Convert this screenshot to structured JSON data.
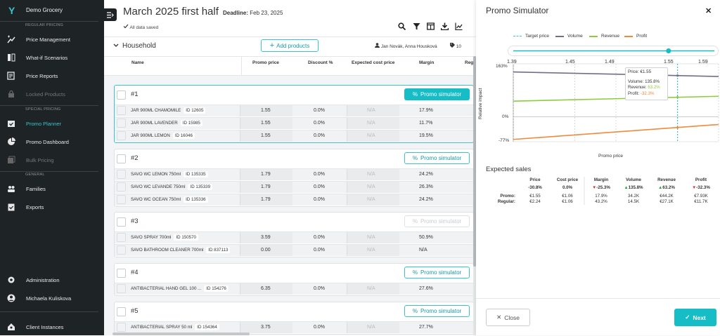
{
  "sidebar": {
    "app_name": "Demo Grocery",
    "logo": "Y",
    "sections": {
      "regular": "REGULAR PRICING",
      "special": "SPECIAL PRICING",
      "general": "GENERAL"
    },
    "items": [
      {
        "label": "Price Management",
        "icon": "price-tag-icon"
      },
      {
        "label": "What-if Scenarios",
        "icon": "columns-icon"
      },
      {
        "label": "Price Reports",
        "icon": "report-icon"
      },
      {
        "label": "Locked Products",
        "icon": "lock-icon"
      },
      {
        "label": "Promo Planner",
        "icon": "calendar-check-icon"
      },
      {
        "label": "Promo Dashboard",
        "icon": "pie-chart-icon"
      },
      {
        "label": "Bulk Pricing",
        "icon": "bulk-icon"
      },
      {
        "label": "Families",
        "icon": "people-icon"
      },
      {
        "label": "Exports",
        "icon": "clipboard-check-icon"
      },
      {
        "label": "Administration",
        "icon": "gear-icon"
      },
      {
        "label": "Michaela Kuliskova",
        "icon": "user-icon"
      },
      {
        "label": "Client Instances",
        "icon": "home-user-icon"
      }
    ]
  },
  "header": {
    "title": "March 2025 first half",
    "deadline_label": "Deadline:",
    "deadline_value": "Feb 23, 2025",
    "saved": "All data saved"
  },
  "group": {
    "name": "Household",
    "add_label": "Add products",
    "owners": "Jan Novák, Anna Housková",
    "count": "10"
  },
  "table": {
    "columns": [
      "Name",
      "Promo price",
      "Discount %",
      "Expected cost price",
      "Margin",
      "Reg"
    ]
  },
  "promo_sim_label": "Promo simulator",
  "cards": [
    {
      "num": "#1",
      "rows": [
        {
          "name": "JAR 900ML CHAMOMILE",
          "id": "ID 12605",
          "price": "1.55",
          "discount": "0.0%",
          "cost": "N/A",
          "margin": "17.9%"
        },
        {
          "name": "JAR 900ML LAVENDER",
          "id": "ID 15985",
          "price": "1.55",
          "discount": "0.0%",
          "cost": "N/A",
          "margin": "11.7%"
        },
        {
          "name": "JAR 900ML LEMON",
          "id": "ID 16046",
          "price": "1.55",
          "discount": "0.0%",
          "cost": "N/A",
          "margin": "19.5%"
        }
      ]
    },
    {
      "num": "#2",
      "rows": [
        {
          "name": "SAVO WC LEMON 750ml",
          "id": "ID 135335",
          "price": "1.79",
          "discount": "0.0%",
          "cost": "N/A",
          "margin": "24.2%"
        },
        {
          "name": "SAVO WC LEVANDE 750ml",
          "id": "ID 135339",
          "price": "1.79",
          "discount": "0.0%",
          "cost": "N/A",
          "margin": "26.3%"
        },
        {
          "name": "SAVO WC OCEAN 750ml",
          "id": "ID 135336",
          "price": "1.79",
          "discount": "0.0%",
          "cost": "N/A",
          "margin": "24.2%"
        }
      ]
    },
    {
      "num": "#3",
      "rows": [
        {
          "name": "SAVO SPRAY 700ml",
          "id": "ID 150570",
          "price": "3.59",
          "discount": "0.0%",
          "cost": "N/A",
          "margin": "50.9%"
        },
        {
          "name": "SAVO BATHROOM CLEANER 700ml",
          "id": "ID 837113",
          "price": "0.00",
          "discount": "0.0%",
          "cost": "N/A",
          "margin": "N/A"
        }
      ]
    },
    {
      "num": "#4",
      "rows": [
        {
          "name": "ANTIBACTERIAL HAND GEL 100 ...",
          "id": "ID 154276",
          "price": "6.35",
          "discount": "0.0%",
          "cost": "N/A",
          "margin": "27.6%"
        }
      ]
    },
    {
      "num": "#5",
      "rows": [
        {
          "name": "ANTIBACTERIAL SPRAY 50 ml",
          "id": "ID 154364",
          "price": "3.75",
          "discount": "0.0%",
          "cost": "N/A",
          "margin": "27.7%"
        }
      ]
    }
  ],
  "panel": {
    "title": "Promo Simulator",
    "legend": [
      "Target price",
      "Volume",
      "Revenue",
      "Profit"
    ],
    "colors": {
      "target": "#36c5d0",
      "volume": "#6e6f8c",
      "revenue": "#8ccc3c",
      "profit": "#f08a3c",
      "accent": "#16bcc6"
    },
    "slider_ticks": [
      "1.39",
      "1.45",
      "1.49",
      "1.55",
      "1.59"
    ],
    "slider_value": 1.55,
    "y_label": "Relative impact",
    "x_label": "Promo price",
    "y_ticks": [
      "163%",
      "0%",
      "-77%"
    ],
    "tooltip": {
      "price": "Price: €1.55",
      "volume": "Volume: 135.8%",
      "revenue_label": "Revenue:",
      "revenue": "63.2%",
      "profit_label": "Profit:",
      "profit": "-32.3%"
    },
    "expected_sales": {
      "title": "Expected sales",
      "headers": [
        "Price",
        "Cost price",
        "Margin",
        "Volume",
        "Revenue",
        "Profit"
      ],
      "changes": [
        "-30.8%",
        "0.0%",
        "-25.3%",
        "135.8%",
        "63.2%",
        "-32.3%"
      ],
      "row_labels": [
        "Promo:",
        "Regular:"
      ],
      "promo": [
        "€1.55",
        "€1.06",
        "17.9%",
        "34.2K",
        "€44.2K",
        "€7.93K"
      ],
      "regular": [
        "€2.24",
        "€1.06",
        "43.2%",
        "14.5K",
        "€27.1K",
        "€11.7K"
      ]
    },
    "close_label": "Close",
    "next_label": "Next"
  },
  "chart_data": {
    "type": "line",
    "xlabel": "Promo price",
    "ylabel": "Relative impact",
    "xlim": [
      1.39,
      1.59
    ],
    "ylim": [
      -77,
      163
    ],
    "x": [
      1.39,
      1.59
    ],
    "series": [
      {
        "name": "Volume",
        "values": [
          138,
          124
        ]
      },
      {
        "name": "Revenue",
        "values": [
          48,
          63
        ]
      },
      {
        "name": "Profit",
        "values": [
          -70,
          -24
        ]
      }
    ],
    "target_price": 1.55,
    "legend_position": "top"
  }
}
